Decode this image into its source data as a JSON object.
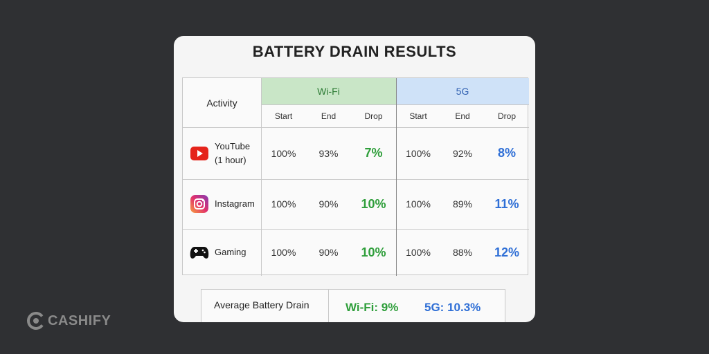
{
  "title": "BATTERY DRAIN RESULTS",
  "table": {
    "activity_header": "Activity",
    "groups": [
      "Wi-Fi",
      "5G"
    ],
    "subheaders": [
      "Start",
      "End",
      "Drop",
      "Start",
      "End",
      "Drop"
    ],
    "rows": [
      {
        "activity": [
          "YouTube",
          "(1 hour)"
        ],
        "cells": [
          "100%",
          "93%",
          "7%",
          "100%",
          "92%",
          "8%"
        ]
      },
      {
        "activity": [
          "Instagram"
        ],
        "cells": [
          "100%",
          "90%",
          "10%",
          "100%",
          "89%",
          "11%"
        ]
      },
      {
        "activity": [
          "Gaming"
        ],
        "cells": [
          "100%",
          "90%",
          "10%",
          "100%",
          "88%",
          "12%"
        ]
      }
    ]
  },
  "average": {
    "label": "Average Battery Drain",
    "wifi_label": "Wi-Fi:",
    "wifi_value": "9%",
    "fiveg_label": "5G:",
    "fiveg_value": "10.3%"
  },
  "brand": "CASHIFY"
}
